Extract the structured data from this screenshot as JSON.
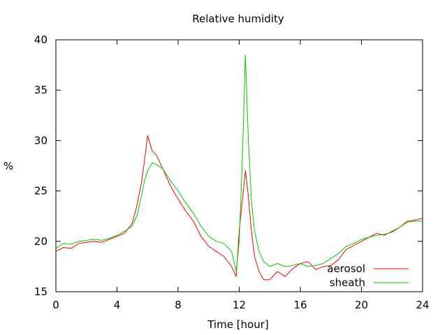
{
  "chart_data": {
    "type": "line",
    "title": "Relative humidity",
    "xlabel": "Time [hour]",
    "ylabel": "%",
    "xlim": [
      0,
      24
    ],
    "ylim": [
      15,
      40
    ],
    "xticks": [
      0,
      4,
      8,
      12,
      16,
      20,
      24
    ],
    "yticks": [
      15,
      20,
      25,
      30,
      35,
      40
    ],
    "grid": false,
    "legend_position": "bottom-right",
    "series": [
      {
        "name": "aerosol",
        "color": "#ff0000",
        "x": [
          0,
          0.5,
          1,
          1.5,
          2,
          2.5,
          3,
          3.5,
          4,
          4.5,
          5,
          5.3,
          5.6,
          5.8,
          6,
          6.3,
          6.6,
          7,
          7.5,
          8,
          8.5,
          9,
          9.5,
          10,
          10.5,
          11,
          11.5,
          11.8,
          12,
          12.2,
          12.4,
          12.6,
          12.8,
          13,
          13.3,
          13.6,
          14,
          14.5,
          15,
          15.5,
          16,
          16.5,
          17,
          17.5,
          18,
          18.5,
          19,
          19.5,
          20,
          20.5,
          21,
          21.5,
          22,
          22.5,
          23,
          23.5,
          24
        ],
        "y": [
          19.0,
          19.4,
          19.3,
          19.8,
          19.9,
          20.0,
          19.9,
          20.2,
          20.5,
          20.8,
          21.8,
          23.5,
          25.8,
          28.0,
          30.5,
          29.0,
          28.5,
          27.2,
          25.5,
          24.2,
          23.0,
          22.0,
          20.5,
          19.5,
          19.0,
          18.5,
          17.5,
          16.5,
          21.0,
          24.0,
          27.0,
          24.5,
          21.0,
          18.5,
          17.0,
          16.2,
          16.2,
          17.0,
          16.5,
          17.3,
          17.8,
          18.0,
          17.2,
          17.5,
          17.6,
          18.2,
          19.2,
          19.6,
          20.0,
          20.4,
          20.8,
          20.6,
          21.0,
          21.4,
          22.0,
          22.1,
          22.3
        ]
      },
      {
        "name": "sheath",
        "color": "#00cc00",
        "x": [
          0,
          0.5,
          1,
          1.5,
          2,
          2.5,
          3,
          3.5,
          4,
          4.5,
          5,
          5.3,
          5.6,
          5.8,
          6,
          6.3,
          6.6,
          7,
          7.5,
          8,
          8.5,
          9,
          9.5,
          10,
          10.5,
          11,
          11.5,
          11.8,
          12,
          12.2,
          12.4,
          12.6,
          12.8,
          13,
          13.3,
          13.6,
          14,
          14.5,
          15,
          15.5,
          16,
          16.5,
          17,
          17.5,
          18,
          18.5,
          19,
          19.5,
          20,
          20.5,
          21,
          21.5,
          22,
          22.5,
          23,
          23.5,
          24
        ],
        "y": [
          19.3,
          19.8,
          19.7,
          20.0,
          20.1,
          20.2,
          20.1,
          20.3,
          20.6,
          21.0,
          21.5,
          22.5,
          24.5,
          26.0,
          27.0,
          27.8,
          27.6,
          27.2,
          26.0,
          25.0,
          23.8,
          22.8,
          21.5,
          20.5,
          20.0,
          19.8,
          19.0,
          17.0,
          20.0,
          28.0,
          38.5,
          30.0,
          24.0,
          21.0,
          19.0,
          18.0,
          17.5,
          17.8,
          17.5,
          17.6,
          17.8,
          17.5,
          17.6,
          17.8,
          18.3,
          18.8,
          19.5,
          19.8,
          20.2,
          20.4,
          20.6,
          20.7,
          20.9,
          21.4,
          21.9,
          22.0,
          22.0
        ]
      }
    ]
  }
}
